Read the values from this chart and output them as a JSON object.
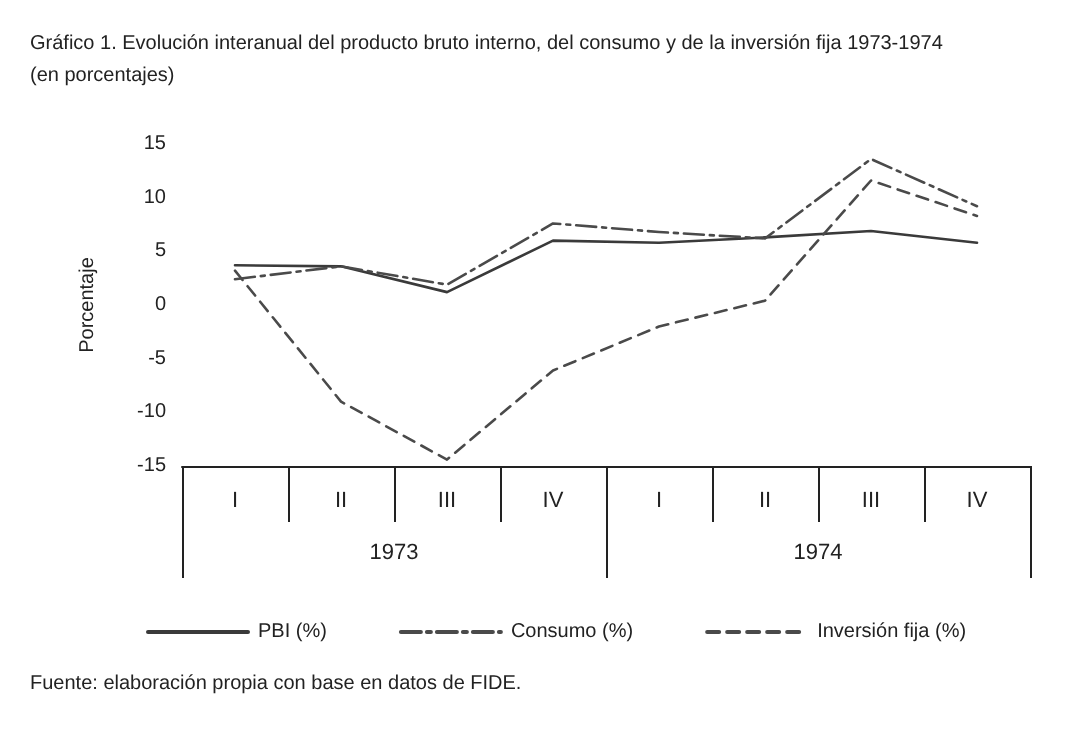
{
  "chart_data": {
    "type": "line",
    "title": "Gráfico 1. Evolución interanual del producto bruto interno, del consumo y de la inversión fija 1973-1974",
    "subtitle": "(en porcentajes)",
    "ylabel": "Porcentaje",
    "categories": [
      "I",
      "II",
      "III",
      "IV",
      "I",
      "II",
      "III",
      "IV"
    ],
    "series": [
      {
        "name": "PBI (%)",
        "color": "#3a3a3a",
        "line_style": "solid",
        "values": [
          3.7,
          3.6,
          1.2,
          6.0,
          5.8,
          6.3,
          6.9,
          5.8
        ]
      },
      {
        "name": "Consumo (%)",
        "color": "#4a4a4a",
        "line_style": "dashdot",
        "values": [
          2.4,
          3.6,
          1.9,
          7.6,
          6.8,
          6.2,
          13.6,
          9.2
        ]
      },
      {
        "name": "Inversión fija (%)",
        "color": "#4a4a4a",
        "line_style": "dashed",
        "values": [
          3.2,
          -9.0,
          -14.4,
          -6.1,
          -2.0,
          0.4,
          11.6,
          8.3
        ]
      }
    ],
    "ylim": [
      -15,
      15
    ],
    "yticks": [
      -15,
      -10,
      -5,
      0,
      5,
      10,
      15
    ],
    "grid": false,
    "legend": "bottom",
    "marker": "none",
    "annotations": [
      "1973",
      "1974",
      "Fuente: elaboración propia con base en datos de FIDE."
    ]
  }
}
